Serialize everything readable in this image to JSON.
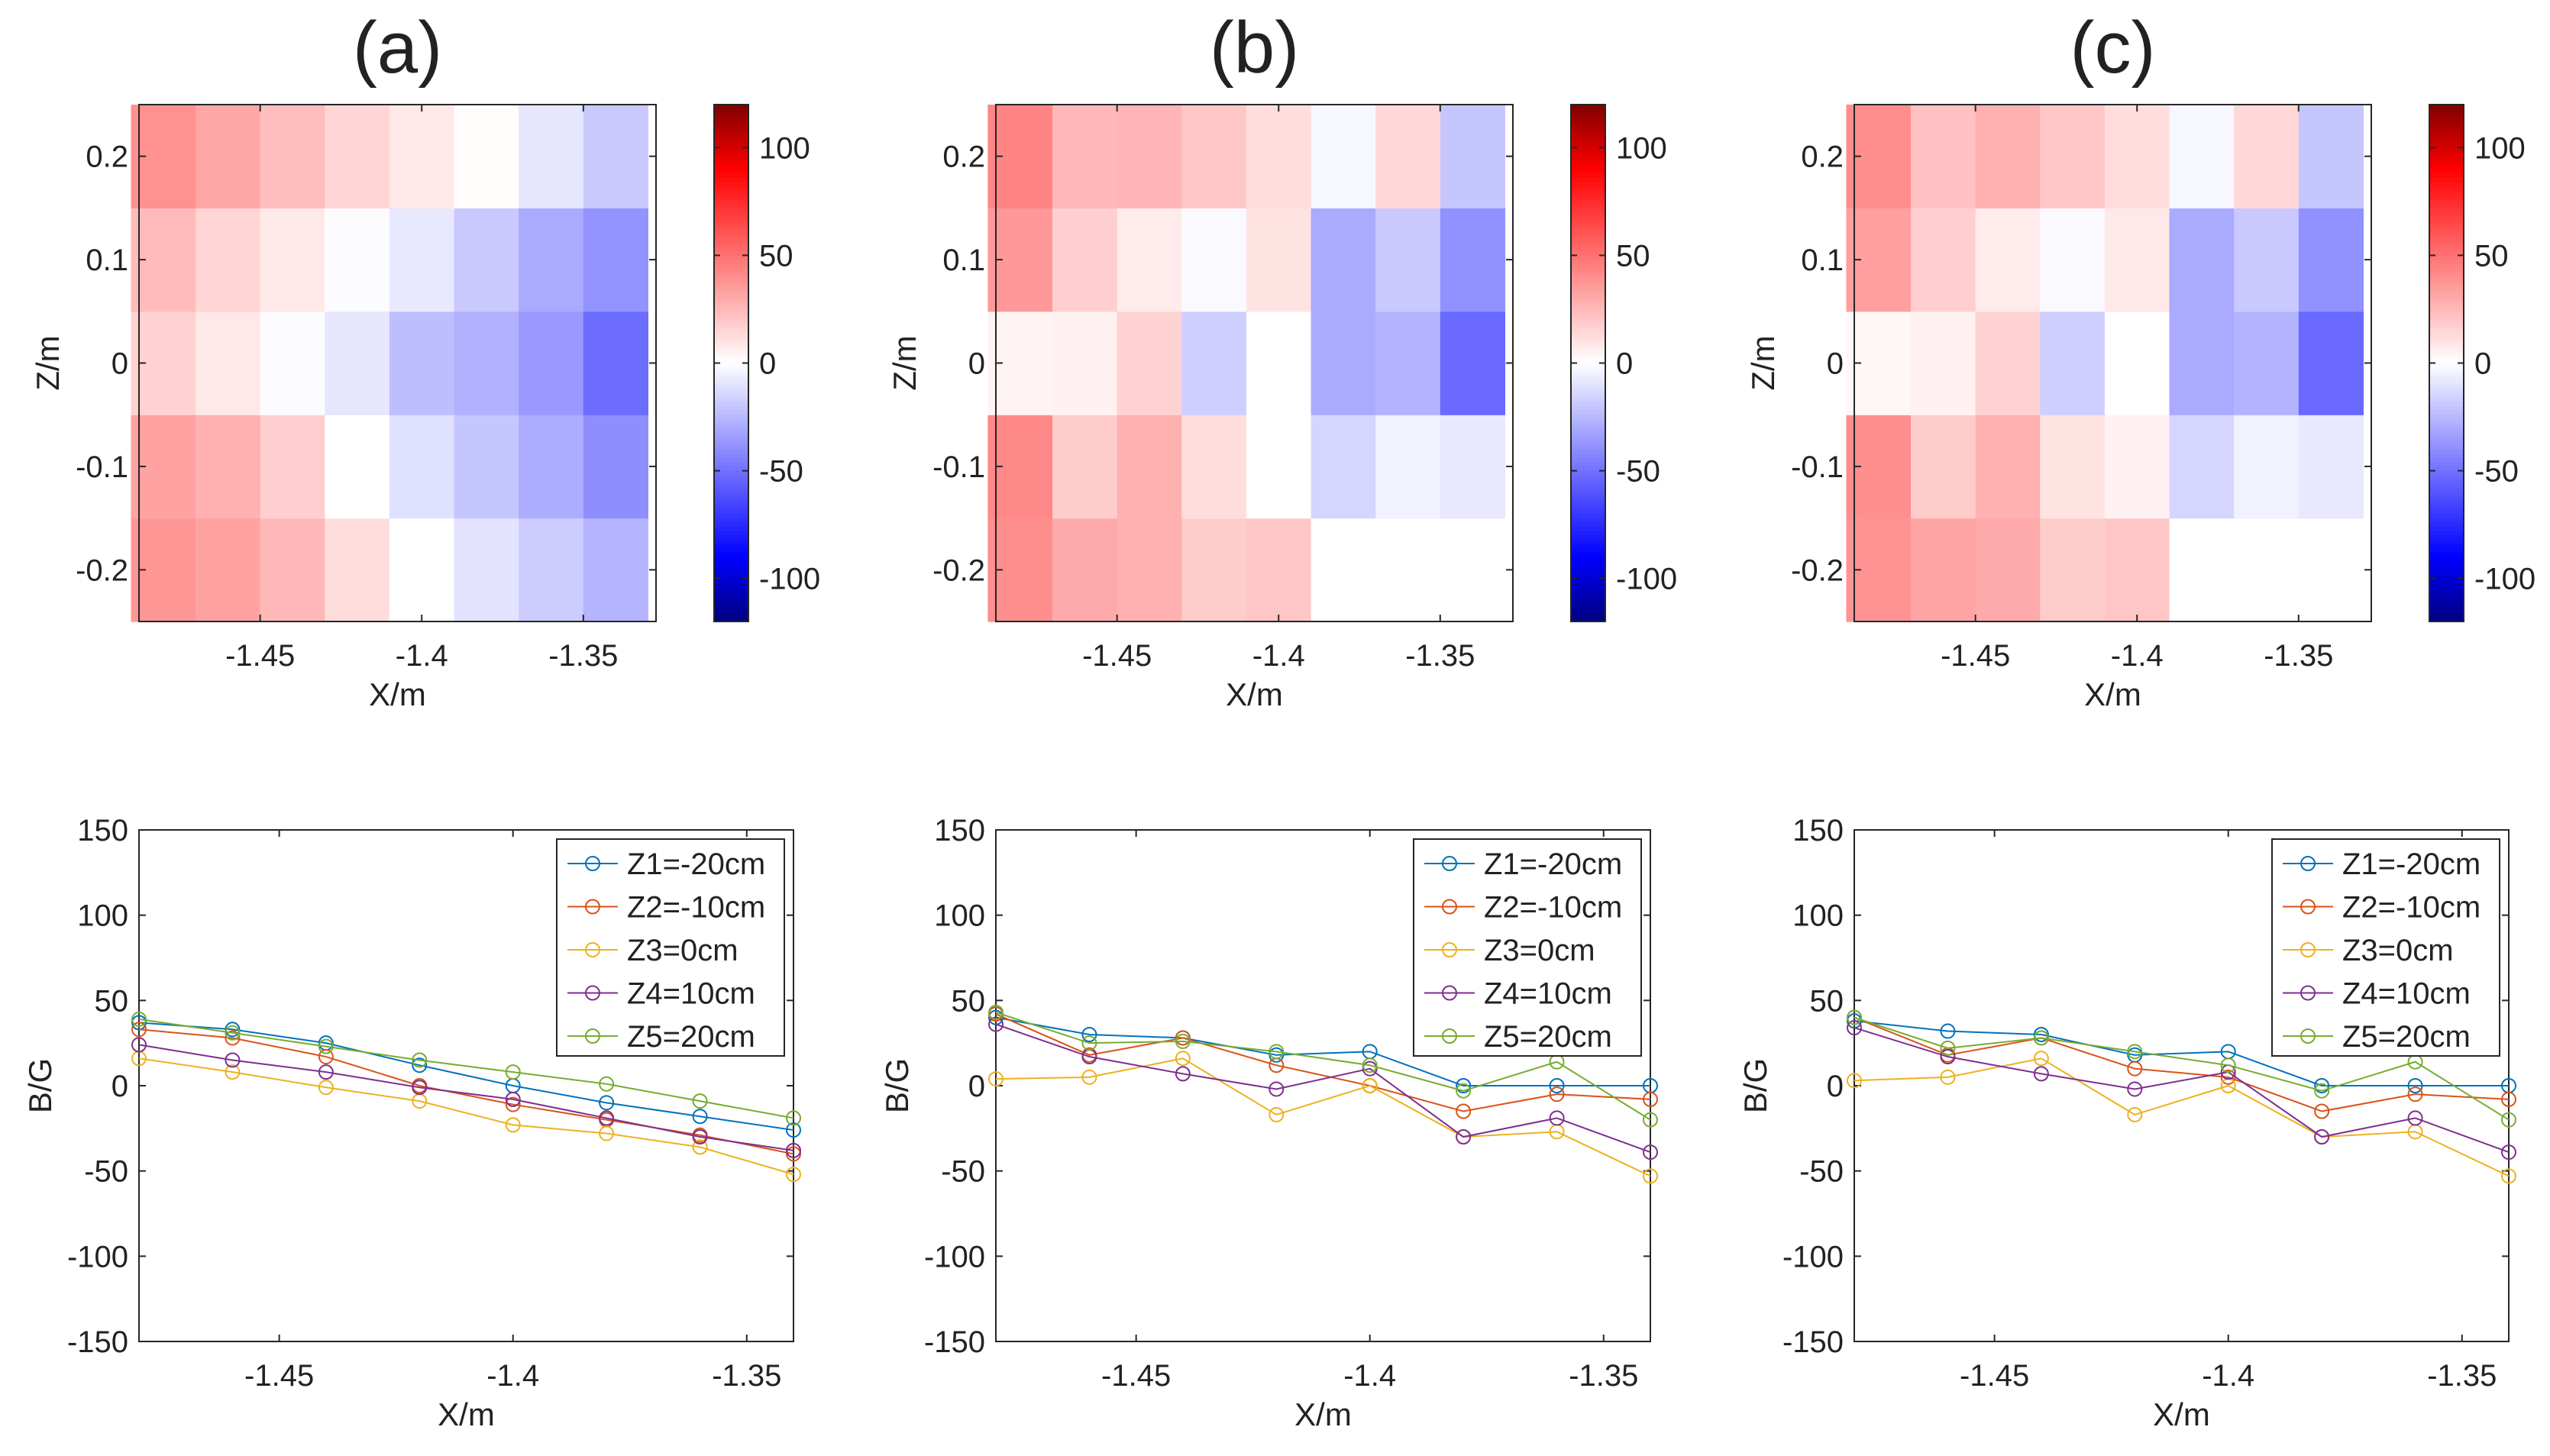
{
  "colors": {
    "series": [
      "#0072BD",
      "#D95319",
      "#EDB120",
      "#7E2F8E",
      "#77AC30"
    ],
    "axis": "#262626"
  },
  "chart_data": [
    {
      "type": "heatmap",
      "title": "(a)",
      "xlabel": "X/m",
      "ylabel": "Z/m",
      "xlim": [
        -1.4875,
        -1.3275
      ],
      "ylim": [
        -0.25,
        0.25
      ],
      "xticks": [
        -1.45,
        -1.4,
        -1.35
      ],
      "xtick_labels": [
        "-1.45",
        "-1.4",
        "-1.35"
      ],
      "yticks": [
        -0.2,
        -0.1,
        0,
        0.1,
        0.2
      ],
      "ytick_labels": [
        "-0.2",
        "-0.1",
        "0",
        "0.1",
        "0.2"
      ],
      "x_centers": [
        -1.48,
        -1.46,
        -1.44,
        -1.42,
        -1.4,
        -1.38,
        -1.36,
        -1.34
      ],
      "z_centers": [
        -0.2,
        -0.1,
        0,
        0.1,
        0.2
      ],
      "values": [
        [
          37,
          33,
          25,
          12,
          0,
          -10,
          -18,
          -26
        ],
        [
          33,
          28,
          17,
          0,
          -11,
          -20,
          -29,
          -40
        ],
        [
          16,
          8,
          -1,
          -9,
          -23,
          -28,
          -36,
          -52
        ],
        [
          24,
          15,
          8,
          -1,
          -8,
          -19,
          -30,
          -38
        ],
        [
          39,
          31,
          23,
          15,
          8,
          1,
          -9,
          -19
        ]
      ],
      "colorbar": {
        "range": [
          -120,
          120
        ],
        "ticks": [
          -100,
          -50,
          0,
          50,
          100
        ],
        "tick_labels": [
          "-100",
          "-50",
          "0",
          "50",
          "100"
        ]
      }
    },
    {
      "type": "heatmap",
      "title": "(b)",
      "xlabel": "X/m",
      "ylabel": "Z/m",
      "xlim": [
        -1.4875,
        -1.3275
      ],
      "ylim": [
        -0.25,
        0.25
      ],
      "xticks": [
        -1.45,
        -1.4,
        -1.35
      ],
      "xtick_labels": [
        "-1.45",
        "-1.4",
        "-1.35"
      ],
      "yticks": [
        -0.2,
        -0.1,
        0,
        0.1,
        0.2
      ],
      "ytick_labels": [
        "-0.2",
        "-0.1",
        "0",
        "0.1",
        "0.2"
      ],
      "x_centers": [
        -1.48,
        -1.46,
        -1.44,
        -1.42,
        -1.4,
        -1.38,
        -1.36,
        -1.34
      ],
      "z_centers": [
        -0.2,
        -0.1,
        0,
        0.1,
        0.2
      ],
      "values": [
        [
          40,
          30,
          28,
          18,
          20,
          0,
          0,
          0
        ],
        [
          42,
          18,
          28,
          12,
          0,
          -15,
          -5,
          -8
        ],
        [
          4,
          5,
          16,
          -17,
          0,
          -30,
          -27,
          -53
        ],
        [
          36,
          17,
          7,
          -2,
          10,
          -30,
          -19,
          -39
        ],
        [
          43,
          25,
          26,
          20,
          12,
          -3,
          14,
          -20
        ]
      ],
      "colorbar": {
        "range": [
          -120,
          120
        ],
        "ticks": [
          -100,
          -50,
          0,
          50,
          100
        ],
        "tick_labels": [
          "-100",
          "-50",
          "0",
          "50",
          "100"
        ]
      }
    },
    {
      "type": "heatmap",
      "title": "(c)",
      "xlabel": "X/m",
      "ylabel": "Z/m",
      "xlim": [
        -1.4875,
        -1.3275
      ],
      "ylim": [
        -0.25,
        0.25
      ],
      "xticks": [
        -1.45,
        -1.4,
        -1.35
      ],
      "xtick_labels": [
        "-1.45",
        "-1.4",
        "-1.35"
      ],
      "yticks": [
        -0.2,
        -0.1,
        0,
        0.1,
        0.2
      ],
      "ytick_labels": [
        "-0.2",
        "-0.1",
        "0",
        "0.1",
        "0.2"
      ],
      "x_centers": [
        -1.48,
        -1.46,
        -1.44,
        -1.42,
        -1.4,
        -1.38,
        -1.36,
        -1.34
      ],
      "z_centers": [
        -0.2,
        -0.1,
        0,
        0.1,
        0.2
      ],
      "values": [
        [
          38,
          32,
          30,
          18,
          20,
          0,
          0,
          0
        ],
        [
          40,
          18,
          28,
          10,
          5,
          -15,
          -5,
          -8
        ],
        [
          3,
          5,
          16,
          -17,
          0,
          -30,
          -27,
          -53
        ],
        [
          34,
          17,
          7,
          -2,
          8,
          -30,
          -19,
          -39
        ],
        [
          40,
          22,
          28,
          20,
          12,
          -3,
          14,
          -20
        ]
      ],
      "colorbar": {
        "range": [
          -120,
          120
        ],
        "ticks": [
          -100,
          -50,
          0,
          50,
          100
        ],
        "tick_labels": [
          "-100",
          "-50",
          "0",
          "50",
          "100"
        ]
      }
    },
    {
      "type": "line",
      "xlabel": "X/m",
      "ylabel": "B/G",
      "xlim": [
        -1.48,
        -1.34
      ],
      "ylim": [
        -150,
        150
      ],
      "xticks": [
        -1.45,
        -1.4,
        -1.35
      ],
      "xtick_labels": [
        "-1.45",
        "-1.4",
        "-1.35"
      ],
      "yticks": [
        -150,
        -100,
        -50,
        0,
        50,
        100,
        150
      ],
      "ytick_labels": [
        "-150",
        "-100",
        "-50",
        "0",
        "50",
        "100",
        "150"
      ],
      "x": [
        -1.48,
        -1.46,
        -1.44,
        -1.42,
        -1.4,
        -1.38,
        -1.36,
        -1.34
      ],
      "legend": "top-right",
      "series": [
        {
          "name": "Z1=-20cm",
          "values": [
            37,
            33,
            25,
            12,
            0,
            -10,
            -18,
            -26
          ]
        },
        {
          "name": "Z2=-10cm",
          "values": [
            33,
            28,
            17,
            0,
            -11,
            -20,
            -29,
            -40
          ]
        },
        {
          "name": "Z3=0cm",
          "values": [
            16,
            8,
            -1,
            -9,
            -23,
            -28,
            -36,
            -52
          ]
        },
        {
          "name": "Z4=10cm",
          "values": [
            24,
            15,
            8,
            -1,
            -8,
            -19,
            -30,
            -38
          ]
        },
        {
          "name": "Z5=20cm",
          "values": [
            39,
            31,
            23,
            15,
            8,
            1,
            -9,
            -19
          ]
        }
      ]
    },
    {
      "type": "line",
      "xlabel": "X/m",
      "ylabel": "B/G",
      "xlim": [
        -1.48,
        -1.34
      ],
      "ylim": [
        -150,
        150
      ],
      "xticks": [
        -1.45,
        -1.4,
        -1.35
      ],
      "xtick_labels": [
        "-1.45",
        "-1.4",
        "-1.35"
      ],
      "yticks": [
        -150,
        -100,
        -50,
        0,
        50,
        100,
        150
      ],
      "ytick_labels": [
        "-150",
        "-100",
        "-50",
        "0",
        "50",
        "100",
        "150"
      ],
      "x": [
        -1.48,
        -1.46,
        -1.44,
        -1.42,
        -1.4,
        -1.38,
        -1.36,
        -1.34
      ],
      "legend": "top-right",
      "series": [
        {
          "name": "Z1=-20cm",
          "values": [
            40,
            30,
            28,
            18,
            20,
            0,
            0,
            0
          ]
        },
        {
          "name": "Z2=-10cm",
          "values": [
            42,
            18,
            28,
            12,
            0,
            -15,
            -5,
            -8
          ]
        },
        {
          "name": "Z3=0cm",
          "values": [
            4,
            5,
            16,
            -17,
            0,
            -30,
            -27,
            -53
          ]
        },
        {
          "name": "Z4=10cm",
          "values": [
            36,
            17,
            7,
            -2,
            10,
            -30,
            -19,
            -39
          ]
        },
        {
          "name": "Z5=20cm",
          "values": [
            43,
            25,
            26,
            20,
            12,
            -3,
            14,
            -20
          ]
        }
      ]
    },
    {
      "type": "line",
      "xlabel": "X/m",
      "ylabel": "B/G",
      "xlim": [
        -1.48,
        -1.34
      ],
      "ylim": [
        -150,
        150
      ],
      "xticks": [
        -1.45,
        -1.4,
        -1.35
      ],
      "xtick_labels": [
        "-1.45",
        "-1.4",
        "-1.35"
      ],
      "yticks": [
        -150,
        -100,
        -50,
        0,
        50,
        100,
        150
      ],
      "ytick_labels": [
        "-150",
        "-100",
        "-50",
        "0",
        "50",
        "100",
        "150"
      ],
      "x": [
        -1.48,
        -1.46,
        -1.44,
        -1.42,
        -1.4,
        -1.38,
        -1.36,
        -1.34
      ],
      "legend": "top-right",
      "series": [
        {
          "name": "Z1=-20cm",
          "values": [
            38,
            32,
            30,
            18,
            20,
            0,
            0,
            0
          ]
        },
        {
          "name": "Z2=-10cm",
          "values": [
            40,
            18,
            28,
            10,
            5,
            -15,
            -5,
            -8
          ]
        },
        {
          "name": "Z3=0cm",
          "values": [
            3,
            5,
            16,
            -17,
            0,
            -30,
            -27,
            -53
          ]
        },
        {
          "name": "Z4=10cm",
          "values": [
            34,
            17,
            7,
            -2,
            8,
            -30,
            -19,
            -39
          ]
        },
        {
          "name": "Z5=20cm",
          "values": [
            40,
            22,
            28,
            20,
            12,
            -3,
            14,
            -20
          ]
        }
      ]
    }
  ]
}
